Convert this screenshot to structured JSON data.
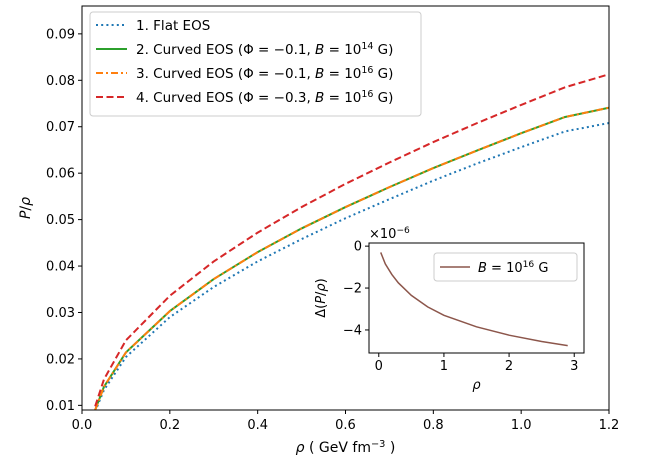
{
  "chart_data": [
    {
      "type": "line",
      "xlabel": "ρ ( GeV fm⁻³ )",
      "ylabel": "P/ρ",
      "xlim": [
        0.0,
        1.2
      ],
      "ylim": [
        0.009,
        0.096
      ],
      "xticks": [
        "0.0",
        "0.2",
        "0.4",
        "0.6",
        "0.8",
        "1.0",
        "1.2"
      ],
      "yticks": [
        "0.01",
        "0.02",
        "0.03",
        "0.04",
        "0.05",
        "0.06",
        "0.07",
        "0.08",
        "0.09"
      ],
      "xtick_values": [
        0.0,
        0.2,
        0.4,
        0.6,
        0.8,
        1.0,
        1.2
      ],
      "ytick_values": [
        0.01,
        0.02,
        0.03,
        0.04,
        0.05,
        0.06,
        0.07,
        0.08,
        0.09
      ],
      "grid": false,
      "legend_position": "top-left",
      "x": [
        0.03,
        0.05,
        0.1,
        0.2,
        0.3,
        0.4,
        0.5,
        0.6,
        0.7,
        0.8,
        0.9,
        1.0,
        1.1,
        1.2
      ],
      "series": [
        {
          "name": "1. Flat EOS",
          "color": "#1f77b4",
          "style": "dotted",
          "values": [
            0.0087,
            0.0133,
            0.0204,
            0.029,
            0.0355,
            0.041,
            0.0458,
            0.0503,
            0.0544,
            0.0584,
            0.0621,
            0.0656,
            0.069,
            0.0708
          ]
        },
        {
          "name": "2. Curved EOS (Φ = −0.1, B = 10¹⁴ G)",
          "color": "#2ca02c",
          "style": "solid",
          "values": [
            0.009,
            0.014,
            0.0214,
            0.0303,
            0.0372,
            0.043,
            0.0481,
            0.0527,
            0.057,
            0.0611,
            0.0649,
            0.0686,
            0.0721,
            0.0741
          ]
        },
        {
          "name": "3. Curved EOS (Φ = −0.1, B = 10¹⁶ G)",
          "color": "#ff7f0e",
          "style": "dashdot",
          "values": [
            0.009,
            0.014,
            0.0214,
            0.0303,
            0.0372,
            0.043,
            0.0481,
            0.0527,
            0.057,
            0.0611,
            0.0649,
            0.0686,
            0.0721,
            0.0741
          ]
        },
        {
          "name": "4. Curved EOS (Φ = −0.3, B = 10¹⁶ G)",
          "color": "#d62728",
          "style": "dashed",
          "values": [
            0.0098,
            0.0156,
            0.024,
            0.0336,
            0.041,
            0.0472,
            0.0527,
            0.0577,
            0.0623,
            0.0667,
            0.0708,
            0.0747,
            0.0785,
            0.0813
          ]
        }
      ]
    },
    {
      "type": "line",
      "role": "inset",
      "xlabel": "ρ",
      "ylabel": "Δ(P/ρ)",
      "scale_label": "×10⁻⁶",
      "xlim": [
        -0.15,
        3.15
      ],
      "ylim": [
        -5.1,
        0.15
      ],
      "xticks": [
        "0",
        "1",
        "2",
        "3"
      ],
      "yticks": [
        "0",
        "−2",
        "−4"
      ],
      "xtick_values": [
        0,
        1,
        2,
        3
      ],
      "ytick_values": [
        0,
        -2,
        -4
      ],
      "legend_position": "top-right",
      "x": [
        0.03,
        0.1,
        0.2,
        0.3,
        0.5,
        0.75,
        1.0,
        1.5,
        2.0,
        2.5,
        2.9
      ],
      "series": [
        {
          "name": "B = 10¹⁶ G",
          "color": "#8c564b",
          "style": "solid",
          "values": [
            -0.3,
            -0.85,
            -1.35,
            -1.75,
            -2.35,
            -2.9,
            -3.3,
            -3.85,
            -4.25,
            -4.55,
            -4.75
          ]
        }
      ]
    }
  ]
}
